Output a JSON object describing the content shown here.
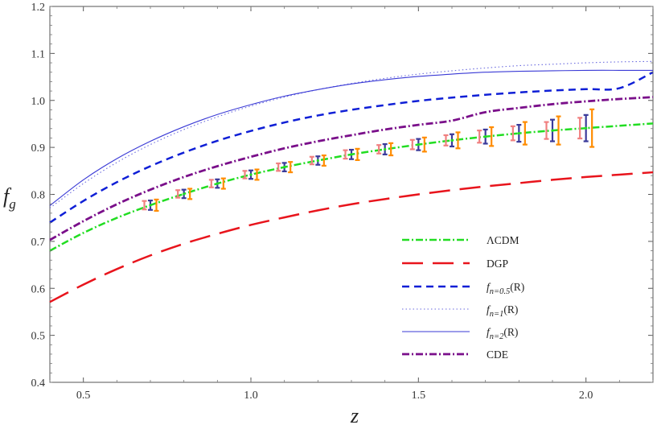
{
  "chart_data": {
    "type": "line",
    "xlabel": "z",
    "ylabel": "f",
    "ylabel_sub": "g",
    "xlim": [
      0.4,
      2.2
    ],
    "ylim": [
      0.4,
      1.2
    ],
    "xticks": [
      0.5,
      1.0,
      1.5,
      2.0
    ],
    "xtick_labels": [
      "0.5",
      "1.0",
      "1.5",
      "2.0"
    ],
    "yticks": [
      0.4,
      0.5,
      0.6,
      0.7,
      0.8,
      0.9,
      1.0,
      1.1,
      1.2
    ],
    "ytick_labels": [
      "0.4",
      "0.5",
      "0.6",
      "0.7",
      "0.8",
      "0.9",
      "1.0",
      "1.1",
      "1.2"
    ],
    "grid": false,
    "legend_position": "bottom-right",
    "series": [
      {
        "name": "ΛCDM",
        "label_main": "ΛCDM",
        "label_sub": "",
        "label_tail": "",
        "italic": false,
        "color": "#22dd22",
        "style": "dashdot",
        "width": 2.5,
        "x": [
          0.4,
          0.5,
          0.6,
          0.7,
          0.8,
          0.9,
          1.0,
          1.1,
          1.2,
          1.3,
          1.4,
          1.5,
          1.6,
          1.7,
          1.8,
          1.9,
          2.0,
          2.1,
          2.2
        ],
        "y": [
          0.68,
          0.718,
          0.75,
          0.777,
          0.801,
          0.823,
          0.842,
          0.858,
          0.872,
          0.885,
          0.896,
          0.906,
          0.915,
          0.923,
          0.93,
          0.936,
          0.941,
          0.946,
          0.951
        ]
      },
      {
        "name": "DGP",
        "label_main": "DGP",
        "label_sub": "",
        "label_tail": "",
        "italic": false,
        "color": "#e8141c",
        "style": "longdash",
        "width": 2.5,
        "x": [
          0.4,
          0.5,
          0.6,
          0.7,
          0.8,
          0.9,
          1.0,
          1.1,
          1.2,
          1.3,
          1.4,
          1.5,
          1.6,
          1.7,
          1.8,
          1.9,
          2.0,
          2.1,
          2.2
        ],
        "y": [
          0.571,
          0.608,
          0.641,
          0.67,
          0.695,
          0.716,
          0.735,
          0.751,
          0.766,
          0.779,
          0.79,
          0.8,
          0.809,
          0.817,
          0.824,
          0.831,
          0.837,
          0.842,
          0.847
        ]
      },
      {
        "name": "f_{n=0.5}(R)",
        "label_main": "f",
        "label_sub": "n=0.5",
        "label_tail": "(R)",
        "italic": true,
        "color": "#0f1fd6",
        "style": "dash",
        "width": 2.5,
        "x": [
          0.4,
          0.5,
          0.6,
          0.7,
          0.8,
          0.9,
          1.0,
          1.1,
          1.2,
          1.3,
          1.4,
          1.5,
          1.6,
          1.7,
          1.8,
          1.9,
          2.0,
          2.1,
          2.2
        ],
        "y": [
          0.74,
          0.786,
          0.826,
          0.86,
          0.889,
          0.914,
          0.935,
          0.953,
          0.968,
          0.98,
          0.99,
          0.999,
          1.006,
          1.012,
          1.017,
          1.021,
          1.024,
          1.026,
          1.06
        ]
      },
      {
        "name": "f_{n=1}(R)",
        "label_main": "f",
        "label_sub": "n=1",
        "label_tail": "(R)",
        "italic": true,
        "color": "#6a6adf",
        "style": "dot",
        "width": 1.1,
        "x": [
          0.4,
          0.5,
          0.6,
          0.7,
          0.8,
          0.9,
          1.0,
          1.1,
          1.2,
          1.3,
          1.4,
          1.5,
          1.6,
          1.7,
          1.8,
          1.9,
          2.0,
          2.1,
          2.2
        ],
        "y": [
          0.771,
          0.823,
          0.868,
          0.906,
          0.938,
          0.965,
          0.988,
          1.007,
          1.023,
          1.036,
          1.047,
          1.056,
          1.063,
          1.069,
          1.074,
          1.077,
          1.08,
          1.082,
          1.083
        ]
      },
      {
        "name": "f_{n=2}(R)",
        "label_main": "f",
        "label_sub": "n=2",
        "label_tail": "(R)",
        "italic": true,
        "color": "#3a3ad6",
        "style": "solid",
        "width": 1.1,
        "x": [
          0.4,
          0.5,
          0.6,
          0.7,
          0.8,
          0.9,
          1.0,
          1.1,
          1.2,
          1.3,
          1.4,
          1.5,
          1.6,
          1.7,
          1.8,
          1.9,
          2.0,
          2.1,
          2.2
        ],
        "y": [
          0.776,
          0.831,
          0.876,
          0.913,
          0.944,
          0.97,
          0.991,
          1.009,
          1.023,
          1.035,
          1.044,
          1.051,
          1.056,
          1.06,
          1.062,
          1.063,
          1.064,
          1.064,
          1.064
        ]
      },
      {
        "name": "CDE",
        "label_main": "CDE",
        "label_sub": "",
        "label_tail": "",
        "italic": false,
        "color": "#7a0f8a",
        "style": "dashdot",
        "width": 2.8,
        "x": [
          0.4,
          0.5,
          0.6,
          0.7,
          0.8,
          0.9,
          1.0,
          1.1,
          1.2,
          1.3,
          1.4,
          1.5,
          1.6,
          1.7,
          1.8,
          1.9,
          2.0,
          2.1,
          2.2
        ],
        "y": [
          0.703,
          0.743,
          0.779,
          0.81,
          0.837,
          0.86,
          0.88,
          0.898,
          0.913,
          0.926,
          0.938,
          0.948,
          0.957,
          0.975,
          0.984,
          0.992,
          0.998,
          1.003,
          1.007
        ]
      }
    ],
    "error_bars": {
      "x": [
        0.7,
        0.8,
        0.9,
        1.0,
        1.1,
        1.2,
        1.3,
        1.4,
        1.5,
        1.6,
        1.7,
        1.8,
        1.9,
        2.0
      ],
      "y": [
        0.777,
        0.801,
        0.823,
        0.842,
        0.858,
        0.872,
        0.885,
        0.896,
        0.906,
        0.915,
        0.923,
        0.93,
        0.936,
        0.941
      ],
      "groups": [
        {
          "color": "#f08080",
          "offset": -0.018,
          "err": [
            0.009,
            0.008,
            0.008,
            0.008,
            0.008,
            0.008,
            0.009,
            0.009,
            0.01,
            0.011,
            0.013,
            0.015,
            0.018,
            0.022
          ]
        },
        {
          "color": "#3a3a9a",
          "offset": 0.0,
          "err": [
            0.01,
            0.009,
            0.009,
            0.009,
            0.009,
            0.009,
            0.01,
            0.011,
            0.012,
            0.013,
            0.015,
            0.018,
            0.023,
            0.028
          ]
        },
        {
          "color": "#ff8c00",
          "offset": 0.018,
          "err": [
            0.012,
            0.011,
            0.011,
            0.011,
            0.011,
            0.011,
            0.012,
            0.013,
            0.015,
            0.017,
            0.02,
            0.024,
            0.03,
            0.04
          ]
        }
      ],
      "center_color": "#22dd22"
    }
  }
}
